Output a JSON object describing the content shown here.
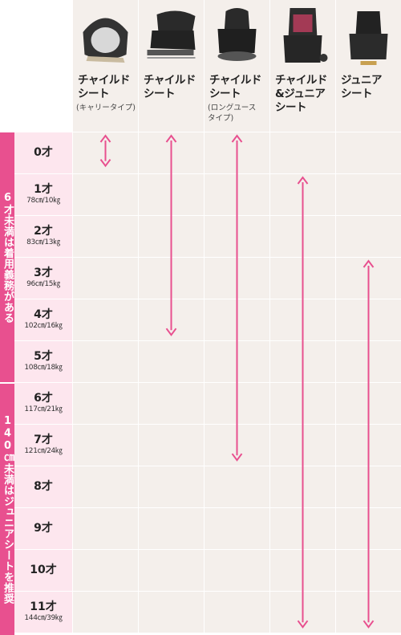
{
  "colors": {
    "bar": "#e8508f",
    "arrow": "#e8508f",
    "age_cell": "#fde6ee",
    "grid_cell": "#f4efeb",
    "header_bg": "#f4efeb"
  },
  "columns": [
    {
      "id": "carry",
      "title": "チャイルド\nシート",
      "sub": "(キャリータイプ)",
      "image": "child-seat-carry-type-image"
    },
    {
      "id": "child",
      "title": "チャイルド\nシート",
      "sub": "",
      "image": "child-seat-image"
    },
    {
      "id": "long",
      "title": "チャイルド\nシート",
      "sub": "(ロングユース\nタイプ)",
      "image": "child-seat-long-use-image"
    },
    {
      "id": "combo",
      "title": "チャイルド\n&ジュニア\nシート",
      "sub": "",
      "image": "child-junior-seat-image"
    },
    {
      "id": "junior",
      "title": "ジュニア\nシート",
      "sub": "",
      "image": "junior-seat-image"
    }
  ],
  "ages": [
    {
      "label": "0才",
      "measure": ""
    },
    {
      "label": "1才",
      "measure": "78㎝/10㎏"
    },
    {
      "label": "2才",
      "measure": "83㎝/13㎏"
    },
    {
      "label": "3才",
      "measure": "96㎝/15㎏"
    },
    {
      "label": "4才",
      "measure": "102㎝/16㎏"
    },
    {
      "label": "5才",
      "measure": "108㎝/18㎏"
    },
    {
      "label": "6才",
      "measure": "117㎝/21㎏"
    },
    {
      "label": "7才",
      "measure": "121㎝/24㎏"
    },
    {
      "label": "8才",
      "measure": ""
    },
    {
      "label": "9才",
      "measure": ""
    },
    {
      "label": "10才",
      "measure": ""
    },
    {
      "label": "11才",
      "measure": "144㎝/39㎏"
    }
  ],
  "bars": {
    "top": "6才未満は着用義務がある",
    "bottom": "140㎝未満はジュニアシートを推奨"
  },
  "chart_data": {
    "type": "table",
    "row_unit": "age",
    "ranges": [
      {
        "column": "carry",
        "from_age": 0,
        "to_age": 0.8
      },
      {
        "column": "child",
        "from_age": 0,
        "to_age": 4
      },
      {
        "column": "long",
        "from_age": 0,
        "to_age": 7
      },
      {
        "column": "combo",
        "from_age": 1,
        "to_age": 11
      },
      {
        "column": "junior",
        "from_age": 3,
        "to_age": 11
      }
    ]
  }
}
